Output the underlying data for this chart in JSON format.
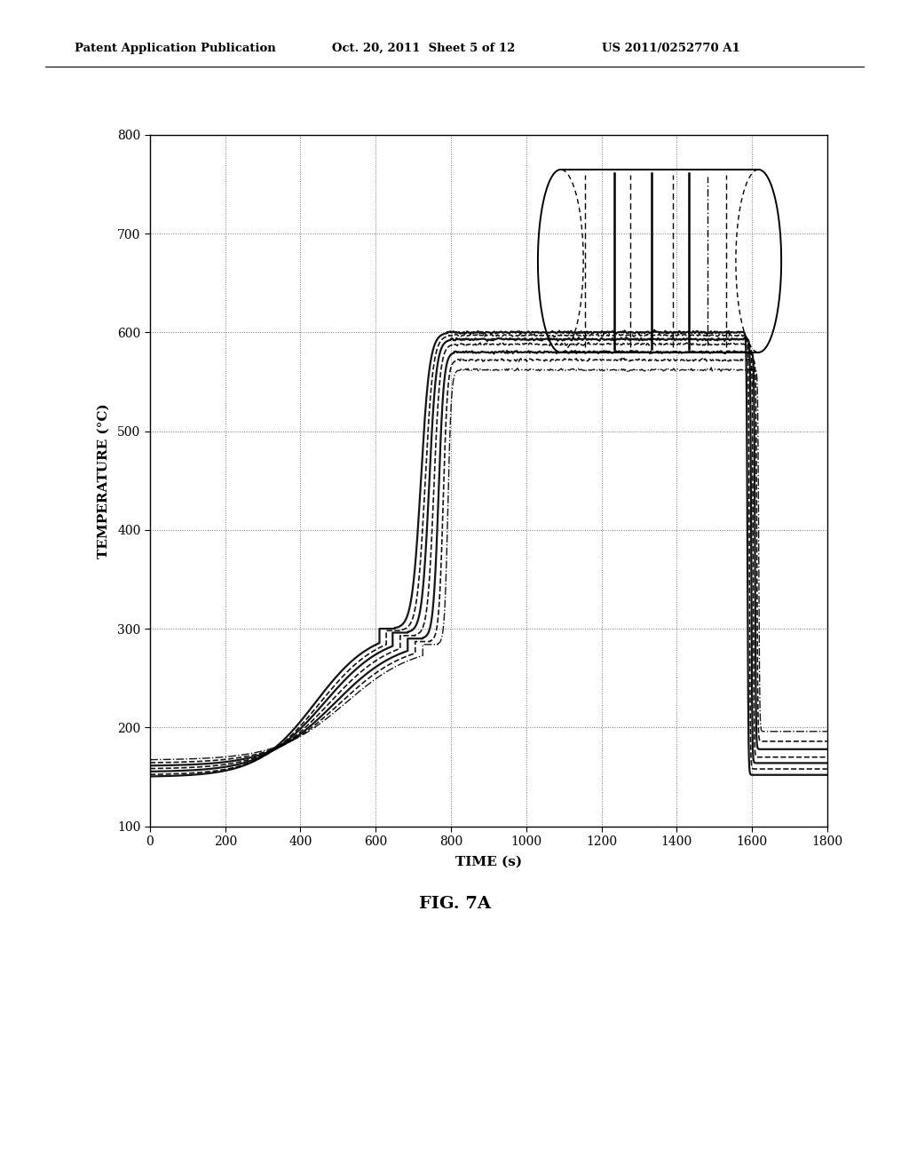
{
  "xlabel": "TIME (s)",
  "ylabel": "TEMPERATURE (°C)",
  "xlim": [
    0,
    1800
  ],
  "ylim": [
    100,
    800
  ],
  "xticks": [
    0,
    200,
    400,
    600,
    800,
    1000,
    1200,
    1400,
    1600,
    1800
  ],
  "yticks": [
    100,
    200,
    300,
    400,
    500,
    600,
    700,
    800
  ],
  "fig_caption": "FIG. 7A",
  "header_left": "Patent Application Publication",
  "header_center": "Oct. 20, 2011  Sheet 5 of 12",
  "header_right": "US 2011/0252770 A1",
  "background_color": "#ffffff",
  "num_curves": 7,
  "plateau_temps": [
    600,
    597,
    593,
    588,
    580,
    572,
    562
  ],
  "initial_temps": [
    150,
    152,
    155,
    158,
    161,
    164,
    167
  ],
  "mid_temps": [
    300,
    298,
    296,
    293,
    290,
    287,
    284
  ],
  "ramp_delays": [
    0,
    18,
    35,
    55,
    75,
    95,
    115
  ],
  "drop_delays": [
    0,
    5,
    10,
    15,
    20,
    25,
    30
  ],
  "final_temps": [
    152,
    158,
    164,
    170,
    178,
    186,
    196
  ],
  "line_styles": [
    "-",
    "--",
    "-",
    "--",
    "-",
    "--",
    "-."
  ],
  "line_widths": [
    1.6,
    1.2,
    1.6,
    1.2,
    1.6,
    1.2,
    1.0
  ],
  "t_mid_start": 610,
  "t_mid_end": 650,
  "t_steep_end": 790,
  "t_drop_start": 1578,
  "t_end": 1800
}
